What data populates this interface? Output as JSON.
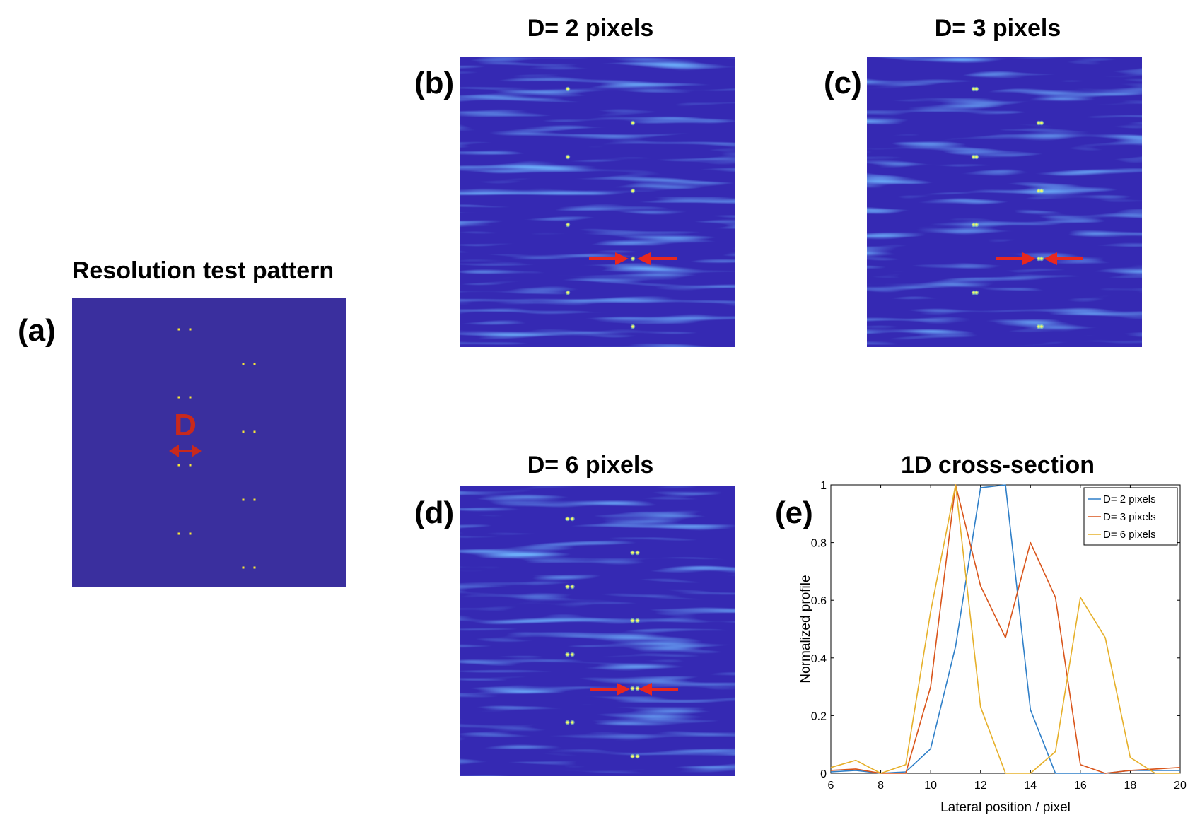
{
  "figure": {
    "panel_a": {
      "label": "(a)",
      "title": "Resolution test pattern",
      "d_label": "D"
    },
    "panel_b": {
      "label": "(b)",
      "title": "D= 2 pixels"
    },
    "panel_c": {
      "label": "(c)",
      "title": "D= 3 pixels"
    },
    "panel_d": {
      "label": "(d)",
      "title": "D= 6 pixels"
    },
    "panel_e": {
      "label": "(e)",
      "title": "1D cross-section"
    }
  },
  "colors": {
    "background_field": "#3a2f9e",
    "recon_field": "#3529b3",
    "dot_yellow": "#f5e63a",
    "arrow_red": "#e8281e",
    "d_label_red": "#c8291c",
    "series_blue": "#2f7fc8",
    "series_orange": "#d9541a",
    "series_yellow": "#e6b02a"
  },
  "chart_data": {
    "type": "line",
    "title": "1D cross-section",
    "xlabel": "Lateral position / pixel",
    "ylabel": "Normalized profile",
    "xlim": [
      6,
      20
    ],
    "ylim": [
      0,
      1
    ],
    "xticks": [
      6,
      8,
      10,
      12,
      14,
      16,
      18,
      20
    ],
    "yticks": [
      0,
      0.2,
      0.4,
      0.6,
      0.8,
      1
    ],
    "ytick_labels": [
      "0",
      "0.2",
      "0.4",
      "0.6",
      "0.8",
      "1"
    ],
    "legend_position": "top-right",
    "x": [
      6,
      7,
      8,
      9,
      10,
      11,
      12,
      13,
      14,
      15,
      16,
      17,
      18,
      19,
      20
    ],
    "series": [
      {
        "name": "D= 2 pixels",
        "color": "#2f7fc8",
        "values": [
          0.005,
          0.01,
          0.0,
          0.005,
          0.085,
          0.44,
          0.99,
          1.0,
          0.22,
          0.0,
          0.0,
          0.0,
          0.01,
          0.01,
          0.01
        ]
      },
      {
        "name": "D= 3 pixels",
        "color": "#d9541a",
        "values": [
          0.01,
          0.015,
          0.0,
          0.0,
          0.3,
          1.0,
          0.65,
          0.47,
          0.8,
          0.61,
          0.03,
          0.0,
          0.01,
          0.015,
          0.02
        ]
      },
      {
        "name": "D= 6 pixels",
        "color": "#e6b02a",
        "values": [
          0.02,
          0.045,
          0.0,
          0.03,
          0.56,
          1.0,
          0.23,
          0.0,
          0.0,
          0.075,
          0.61,
          0.47,
          0.055,
          0.0,
          0.0
        ]
      }
    ]
  }
}
